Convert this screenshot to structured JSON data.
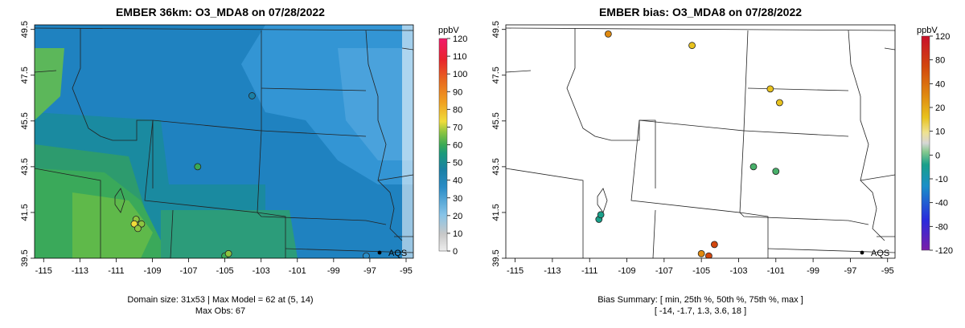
{
  "figure": {
    "panels": [
      {
        "title": "EMBER 36km: O3_MDA8 on 07/28/2022",
        "footer": [
          "Domain size: 31x53 | Max Model = 62 at (5, 14)",
          "Max Obs: 67"
        ],
        "colorbar_unit": "ppbV",
        "colorbar_ticks": [
          "0",
          "10",
          "20",
          "30",
          "40",
          "50",
          "60",
          "70",
          "80",
          "90",
          "100",
          "110",
          "120"
        ],
        "city_label": "AQS"
      },
      {
        "title": "EMBER bias: O3_MDA8 on 07/28/2022",
        "footer": [
          "Bias Summary: [ min, 25th %, 50th %, 75th %, max ]",
          "[ -14,   -1.7,   1.3,   3.6,   18 ]"
        ],
        "colorbar_unit": "ppbV",
        "colorbar_ticks": [
          "-120",
          "-80",
          "-40",
          "-10",
          "0",
          "10",
          "20",
          "40",
          "80",
          "120"
        ],
        "city_label": "AQS"
      }
    ]
  },
  "chart_data": [
    {
      "type": "heatmap",
      "title": "EMBER 36km: O3_MDA8 on 07/28/2022",
      "variable": "O3_MDA8",
      "date": "07/28/2022",
      "x_ticks": [
        "-115",
        "-113",
        "-111",
        "-109",
        "-107",
        "-105",
        "-103",
        "-101",
        "-99",
        "-97",
        "-95"
      ],
      "y_ticks": [
        "39.5",
        "41.5",
        "43.5",
        "45.5",
        "47.5",
        "49.5"
      ],
      "xlim": [
        -115.5,
        -94.6
      ],
      "ylim": [
        39.5,
        49.7
      ],
      "unit": "ppbV",
      "color_range": [
        0,
        120
      ],
      "domain_size": "31x53",
      "max_model": 62,
      "max_model_cell": [
        5,
        14
      ],
      "max_obs": 67,
      "model_field_summary": "roughly 55-62 ppbV in Idaho / Utah / northern Nevada, 45-55 ppbV across Wyoming and Colorado, 35-45 ppbV over the northern plains",
      "observations": [
        {
          "lon": -109.9,
          "lat": 41.2,
          "value": 62
        },
        {
          "lon": -110.0,
          "lat": 41.0,
          "value": 67
        },
        {
          "lon": -109.6,
          "lat": 41.0,
          "value": 64
        },
        {
          "lon": -109.8,
          "lat": 40.8,
          "value": 60
        },
        {
          "lon": -105.0,
          "lat": 39.6,
          "value": 56
        },
        {
          "lon": -104.8,
          "lat": 39.7,
          "value": 58
        },
        {
          "lon": -103.5,
          "lat": 46.6,
          "value": 45
        },
        {
          "lon": -106.5,
          "lat": 43.5,
          "value": 50
        },
        {
          "lon": -97.2,
          "lat": 39.6,
          "value": 38
        }
      ]
    },
    {
      "type": "scatter",
      "title": "EMBER bias: O3_MDA8 on 07/28/2022",
      "variable": "O3_MDA8 bias",
      "date": "07/28/2022",
      "x_ticks": [
        "-115",
        "-113",
        "-111",
        "-109",
        "-107",
        "-105",
        "-103",
        "-101",
        "-99",
        "-97",
        "-95"
      ],
      "y_ticks": [
        "39.5",
        "41.5",
        "43.5",
        "45.5",
        "47.5",
        "49.5"
      ],
      "xlim": [
        -115.5,
        -94.6
      ],
      "ylim": [
        39.5,
        49.7
      ],
      "unit": "ppbV",
      "color_ticks": [
        -120,
        -80,
        -40,
        -10,
        0,
        10,
        20,
        40,
        80,
        120
      ],
      "bias_summary": {
        "min": -14,
        "p25": -1.7,
        "p50": 1.3,
        "p75": 3.6,
        "max": 18
      },
      "observations": [
        {
          "lon": -110.0,
          "lat": 49.3,
          "value": 14
        },
        {
          "lon": -105.5,
          "lat": 48.8,
          "value": 6
        },
        {
          "lon": -101.3,
          "lat": 46.9,
          "value": 9
        },
        {
          "lon": -100.8,
          "lat": 46.3,
          "value": 7
        },
        {
          "lon": -104.3,
          "lat": 40.1,
          "value": 17
        },
        {
          "lon": -105.0,
          "lat": 39.7,
          "value": 13
        },
        {
          "lon": -104.6,
          "lat": 39.6,
          "value": 18
        },
        {
          "lon": -102.2,
          "lat": 43.5,
          "value": -6
        },
        {
          "lon": -101.0,
          "lat": 43.3,
          "value": -7
        },
        {
          "lon": -110.5,
          "lat": 41.2,
          "value": -10
        },
        {
          "lon": -110.4,
          "lat": 41.4,
          "value": -14
        }
      ]
    }
  ]
}
